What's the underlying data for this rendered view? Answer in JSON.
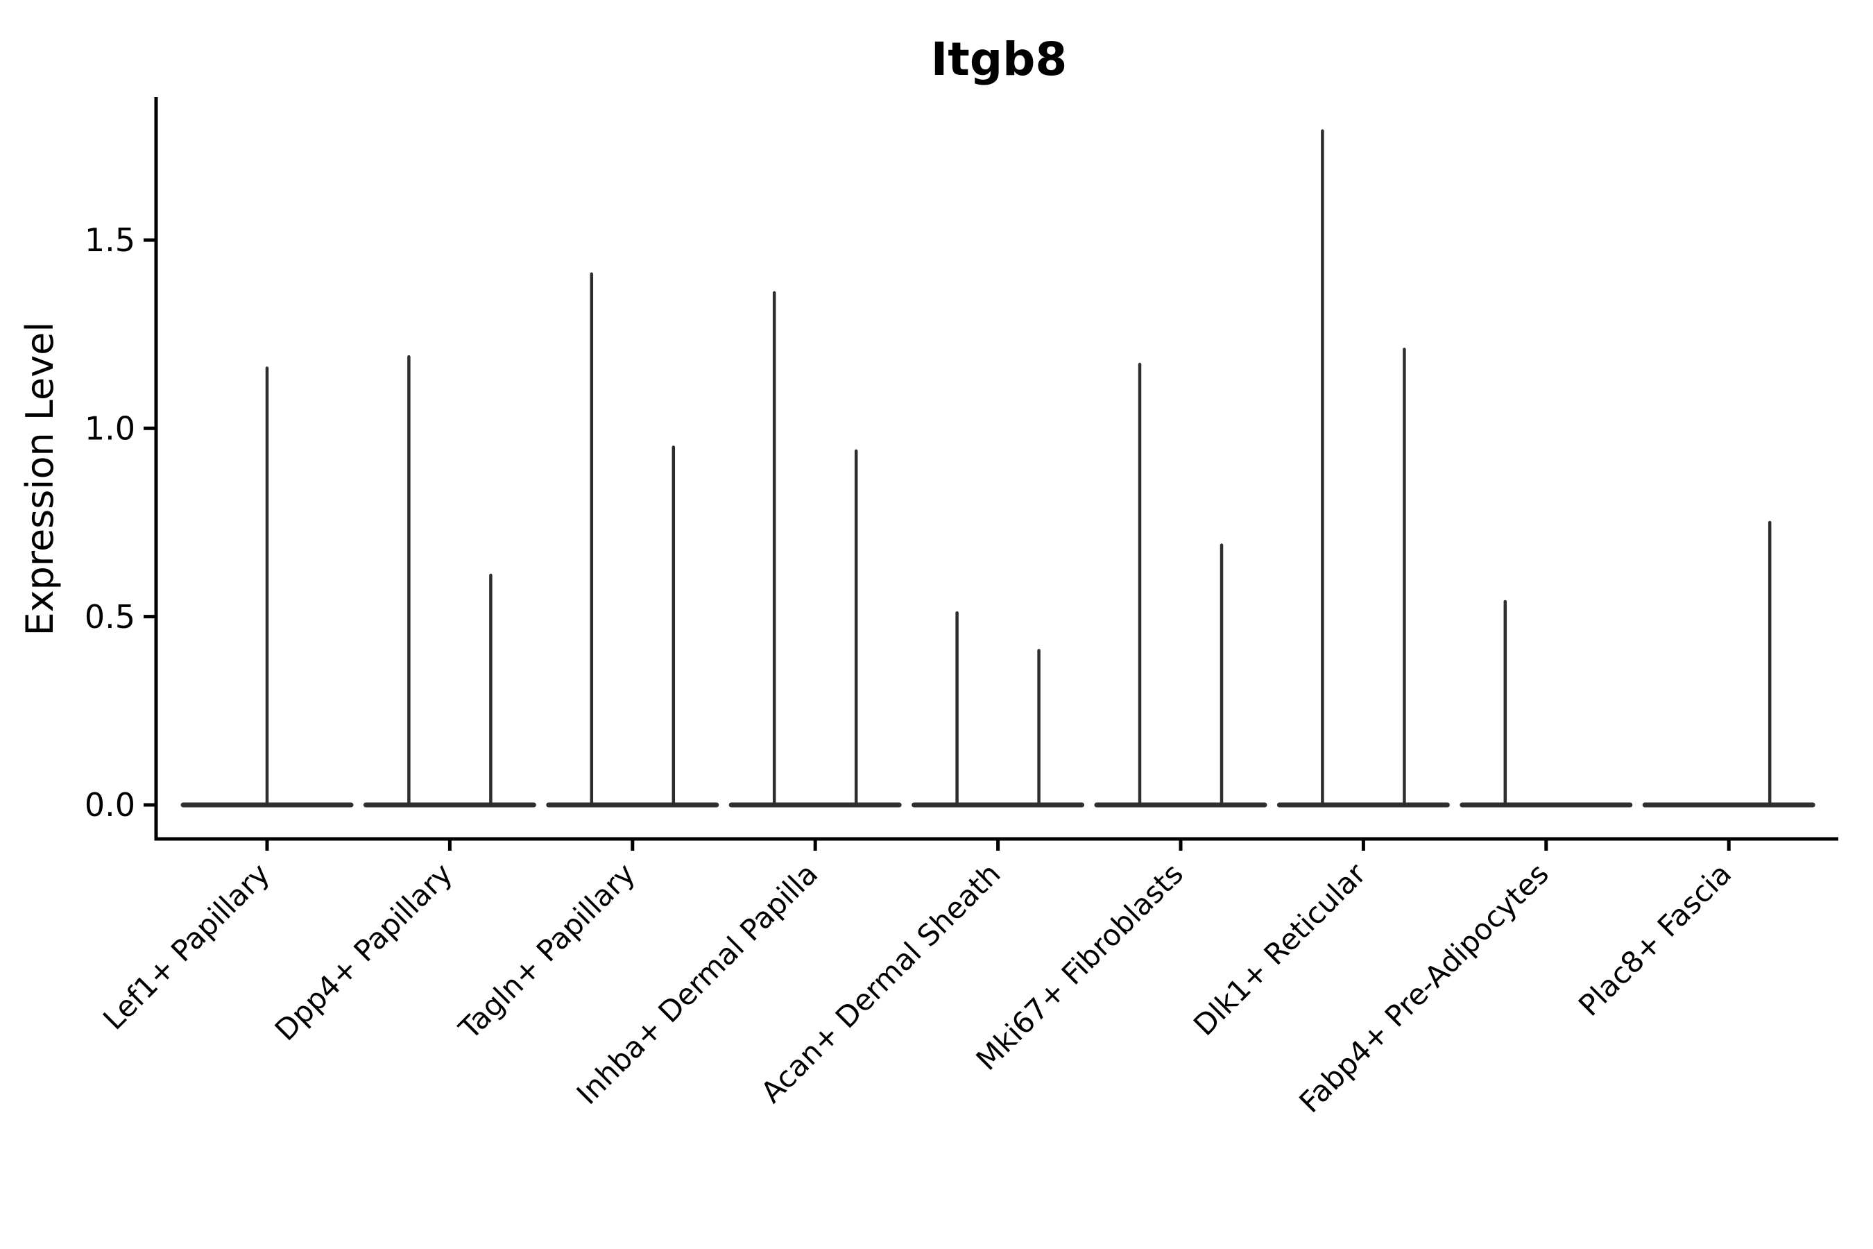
{
  "chart_data": {
    "type": "violin",
    "title": "Itgb8",
    "ylabel": "Expression Level",
    "xlabel": "",
    "yticks": [
      {
        "label": "0.0",
        "value": 0.0
      },
      {
        "label": "0.5",
        "value": 0.5
      },
      {
        "label": "1.0",
        "value": 1.0
      },
      {
        "label": "1.5",
        "value": 1.5
      }
    ],
    "ylim": [
      0.0,
      1.88
    ],
    "x_tick_rotation": 45,
    "grid": "off",
    "legend": "none",
    "baseline_value": 0.0,
    "groups": [
      {
        "category": "Lef1+ Papillary",
        "violins": [
          {
            "slot": "center",
            "max_expression": 1.16
          }
        ]
      },
      {
        "category": "Dpp4+ Papillary",
        "violins": [
          {
            "slot": "left",
            "max_expression": 1.19
          },
          {
            "slot": "right",
            "max_expression": 0.61
          }
        ]
      },
      {
        "category": "Tagln+ Papillary",
        "violins": [
          {
            "slot": "left",
            "max_expression": 1.41
          },
          {
            "slot": "right",
            "max_expression": 0.95
          }
        ]
      },
      {
        "category": "Inhba+ Dermal Papilla",
        "violins": [
          {
            "slot": "left",
            "max_expression": 1.36
          },
          {
            "slot": "right",
            "max_expression": 0.94
          }
        ]
      },
      {
        "category": "Acan+ Dermal Sheath",
        "violins": [
          {
            "slot": "left",
            "max_expression": 0.51
          },
          {
            "slot": "right",
            "max_expression": 0.41
          }
        ]
      },
      {
        "category": "Mki67+ Fibroblasts",
        "violins": [
          {
            "slot": "left",
            "max_expression": 1.17
          },
          {
            "slot": "right",
            "max_expression": 0.69
          }
        ]
      },
      {
        "category": "Dlk1+ Reticular",
        "violins": [
          {
            "slot": "left",
            "max_expression": 1.79
          },
          {
            "slot": "right",
            "max_expression": 1.21
          }
        ]
      },
      {
        "category": "Fabp4+ Pre-Adipocytes",
        "violins": [
          {
            "slot": "left",
            "max_expression": 0.54
          }
        ]
      },
      {
        "category": "Plac8+ Fascia",
        "violins": [
          {
            "slot": "right",
            "max_expression": 0.75
          }
        ]
      }
    ],
    "colors": {
      "background": "#ffffff",
      "axis": "#000000",
      "text": "#000000",
      "violin": "#2e2e2e"
    }
  }
}
